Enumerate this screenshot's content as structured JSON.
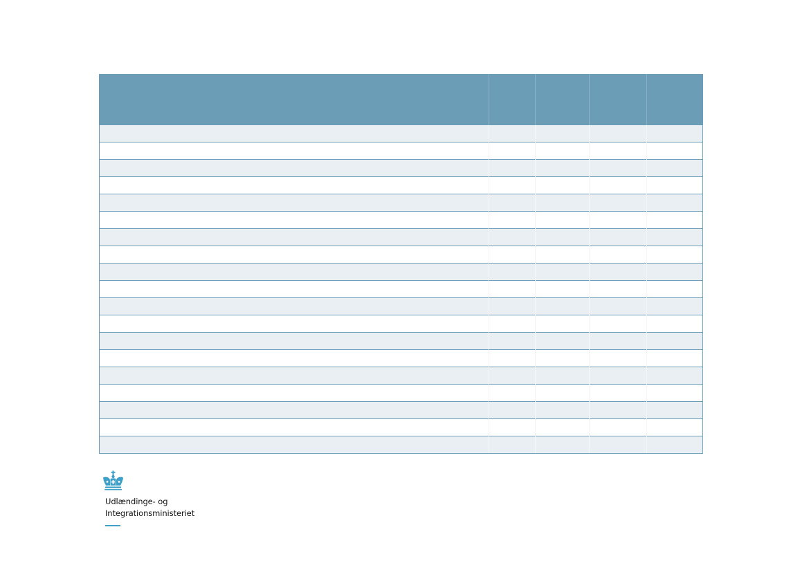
{
  "table": {
    "header": [
      "",
      "",
      "",
      "",
      ""
    ],
    "rows": [
      [
        "",
        "",
        "",
        "",
        ""
      ],
      [
        "",
        "",
        "",
        "",
        ""
      ],
      [
        "",
        "",
        "",
        "",
        ""
      ],
      [
        "",
        "",
        "",
        "",
        ""
      ],
      [
        "",
        "",
        "",
        "",
        ""
      ],
      [
        "",
        "",
        "",
        "",
        ""
      ],
      [
        "",
        "",
        "",
        "",
        ""
      ],
      [
        "",
        "",
        "",
        "",
        ""
      ],
      [
        "",
        "",
        "",
        "",
        ""
      ],
      [
        "",
        "",
        "",
        "",
        ""
      ],
      [
        "",
        "",
        "",
        "",
        ""
      ],
      [
        "",
        "",
        "",
        "",
        ""
      ],
      [
        "",
        "",
        "",
        "",
        ""
      ],
      [
        "",
        "",
        "",
        "",
        ""
      ],
      [
        "",
        "",
        "",
        "",
        ""
      ],
      [
        "",
        "",
        "",
        "",
        ""
      ],
      [
        "",
        "",
        "",
        "",
        ""
      ],
      [
        "",
        "",
        "",
        "",
        ""
      ],
      [
        "",
        "",
        "",
        "",
        ""
      ]
    ]
  },
  "branding": {
    "logo_icon": "crown-icon",
    "name_line1": "Udlændinge- og",
    "name_line2": "Integrationsministeriet",
    "accent_color": "#3ea0c8",
    "header_color": "#6b9db7"
  }
}
